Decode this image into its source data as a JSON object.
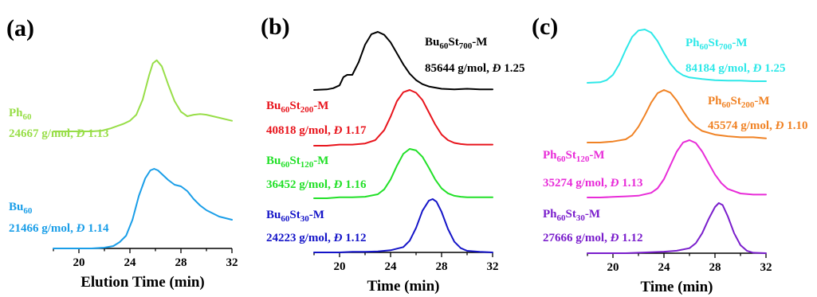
{
  "chart_data": [
    {
      "type": "line",
      "panel_label": "(a)",
      "xlabel": "Elution Time (min)",
      "ylabel": "",
      "xlim": [
        18,
        32
      ],
      "xticks": [
        20,
        24,
        28,
        32
      ],
      "grid": false,
      "series": [
        {
          "name": "Ph60",
          "name_base": "Ph",
          "name_sub": "60",
          "name_suffix": "",
          "info": "24667 g/mol, Đ 1.13",
          "color": "#98de48",
          "x": [
            18,
            19,
            20,
            21,
            21.8,
            22.5,
            23,
            23.5,
            24,
            24.5,
            25,
            25.5,
            25.8,
            26.1,
            26.5,
            27,
            27.5,
            28,
            28.5,
            29,
            29.5,
            30,
            31,
            32
          ],
          "y": [
            0.0,
            0.0,
            0.0,
            0.0,
            0.01,
            0.04,
            0.07,
            0.1,
            0.14,
            0.22,
            0.42,
            0.74,
            0.9,
            0.94,
            0.86,
            0.62,
            0.4,
            0.26,
            0.2,
            0.22,
            0.23,
            0.22,
            0.18,
            0.14
          ]
        },
        {
          "name": "Bu60",
          "name_base": "Bu",
          "name_sub": "60",
          "name_suffix": "",
          "info": "21466 g/mol, Đ 1.14",
          "color": "#1a9ee8",
          "x": [
            18,
            19,
            20,
            21,
            22,
            22.7,
            23.2,
            23.7,
            24.2,
            24.7,
            25.2,
            25.6,
            25.9,
            26.2,
            26.6,
            27,
            27.5,
            28,
            28.5,
            29,
            29.5,
            30,
            31,
            32
          ],
          "y": [
            0.0,
            0.0,
            0.0,
            0.0,
            0.01,
            0.03,
            0.08,
            0.16,
            0.36,
            0.66,
            0.88,
            0.98,
            1.0,
            0.98,
            0.92,
            0.86,
            0.8,
            0.78,
            0.72,
            0.62,
            0.54,
            0.48,
            0.4,
            0.36
          ]
        }
      ]
    },
    {
      "type": "line",
      "panel_label": "(b)",
      "xlabel": "Time (min)",
      "ylabel": "",
      "xlim": [
        18,
        32
      ],
      "xticks": [
        20,
        24,
        28,
        32
      ],
      "grid": false,
      "series": [
        {
          "name": "Bu60St700-M",
          "name_base": "Bu",
          "name_sub": "60",
          "name_suffix": "St700-M",
          "info": "85644 g/mol, Đ 1.25",
          "color": "#000000",
          "x": [
            18,
            19,
            19.5,
            20,
            20.3,
            20.6,
            21,
            21.5,
            22,
            22.5,
            23,
            23.5,
            24,
            24.5,
            25,
            25.5,
            26,
            26.5,
            27,
            28,
            29,
            30,
            31,
            32
          ],
          "y": [
            0.0,
            0.01,
            0.03,
            0.08,
            0.22,
            0.26,
            0.26,
            0.48,
            0.78,
            0.96,
            1.0,
            0.95,
            0.82,
            0.63,
            0.44,
            0.28,
            0.17,
            0.1,
            0.06,
            0.02,
            0.01,
            0.02,
            0.01,
            0.01
          ]
        },
        {
          "name": "Bu60St200-M",
          "name_base": "Bu",
          "name_sub": "60",
          "name_suffix": "St200-M",
          "info": "40818 g/mol, Đ 1.17",
          "color": "#e8141c",
          "x": [
            18,
            19,
            20,
            21,
            22,
            22.8,
            23.5,
            24,
            24.5,
            25,
            25.5,
            26,
            26.5,
            27,
            27.5,
            28,
            28.5,
            29,
            29.5,
            30,
            31,
            32
          ],
          "y": [
            0.0,
            0.0,
            0.02,
            0.02,
            0.04,
            0.1,
            0.28,
            0.52,
            0.8,
            0.96,
            1.0,
            0.95,
            0.82,
            0.6,
            0.38,
            0.2,
            0.1,
            0.05,
            0.03,
            0.02,
            0.02,
            0.02
          ]
        },
        {
          "name": "Bu60St120-M",
          "name_base": "Bu",
          "name_sub": "60",
          "name_suffix": "St120-M",
          "info": "36452 g/mol, Đ 1.16",
          "color": "#22e028",
          "x": [
            18,
            19,
            20,
            21,
            22,
            23,
            23.5,
            24,
            24.5,
            25,
            25.5,
            26,
            26.5,
            27,
            27.5,
            28,
            28.5,
            29,
            29.5,
            30,
            31,
            32
          ],
          "y": [
            0.0,
            0.0,
            0.02,
            0.02,
            0.03,
            0.08,
            0.18,
            0.38,
            0.66,
            0.9,
            1.0,
            0.97,
            0.84,
            0.62,
            0.38,
            0.2,
            0.1,
            0.05,
            0.03,
            0.02,
            0.02,
            0.02
          ]
        },
        {
          "name": "Bu60St30-M",
          "name_base": "Bu",
          "name_sub": "60",
          "name_suffix": "St30-M",
          "info": "24223 g/mol, Đ 1.12",
          "color": "#1414c8",
          "x": [
            18,
            19,
            20,
            21,
            22,
            23,
            24,
            25,
            25.5,
            26,
            26.5,
            27,
            27.3,
            27.6,
            28,
            28.5,
            29,
            29.5,
            30,
            31,
            32
          ],
          "y": [
            0.0,
            0.0,
            0.0,
            0.01,
            0.01,
            0.02,
            0.04,
            0.1,
            0.22,
            0.46,
            0.78,
            0.97,
            1.0,
            0.95,
            0.76,
            0.44,
            0.2,
            0.08,
            0.03,
            0.01,
            0.0
          ]
        }
      ]
    },
    {
      "type": "line",
      "panel_label": "(c)",
      "xlabel": "Time (min)",
      "ylabel": "",
      "xlim": [
        18,
        32
      ],
      "xticks": [
        20,
        24,
        28,
        32
      ],
      "grid": false,
      "series": [
        {
          "name": "Ph60St700-M",
          "name_base": "Ph",
          "name_sub": "60",
          "name_suffix": "St700-M",
          "info": "84184 g/mol, Đ 1.25",
          "color": "#2ee8e8",
          "x": [
            18,
            19,
            19.5,
            20,
            20.5,
            21,
            21.5,
            22,
            22.5,
            23,
            23.5,
            24,
            24.5,
            25,
            25.5,
            26,
            27,
            28,
            29,
            30,
            31,
            32
          ],
          "y": [
            0.0,
            0.01,
            0.05,
            0.15,
            0.35,
            0.62,
            0.86,
            0.98,
            1.0,
            0.94,
            0.78,
            0.56,
            0.36,
            0.22,
            0.14,
            0.1,
            0.07,
            0.05,
            0.04,
            0.04,
            0.03,
            0.03
          ]
        },
        {
          "name": "Ph60St200-M",
          "name_base": "Ph",
          "name_sub": "60",
          "name_suffix": "St200-M",
          "info": "45574 g/mol, Đ 1.10",
          "color": "#f08224",
          "x": [
            18,
            19,
            20,
            21,
            21.5,
            22,
            22.5,
            23,
            23.5,
            24,
            24.5,
            25,
            25.5,
            26,
            26.5,
            27,
            28,
            29,
            30,
            31,
            32
          ],
          "y": [
            0.0,
            0.0,
            0.02,
            0.06,
            0.14,
            0.3,
            0.52,
            0.76,
            0.94,
            1.0,
            0.95,
            0.8,
            0.6,
            0.42,
            0.3,
            0.22,
            0.15,
            0.12,
            0.1,
            0.1,
            0.08
          ]
        },
        {
          "name": "Ph60St120-M",
          "name_base": "Ph",
          "name_sub": "60",
          "name_suffix": "St120-M",
          "info": "35274 g/mol, Đ 1.13",
          "color": "#e82cd8",
          "x": [
            18,
            19,
            20,
            21,
            22,
            23,
            23.5,
            24,
            24.5,
            25,
            25.5,
            26,
            26.5,
            27,
            27.5,
            28,
            28.5,
            29,
            30,
            31,
            32
          ],
          "y": [
            0.0,
            0.0,
            0.01,
            0.02,
            0.03,
            0.08,
            0.16,
            0.32,
            0.56,
            0.8,
            0.96,
            1.0,
            0.95,
            0.8,
            0.6,
            0.4,
            0.25,
            0.15,
            0.07,
            0.05,
            0.05
          ]
        },
        {
          "name": "Ph60St30-M",
          "name_base": "Ph",
          "name_sub": "60",
          "name_suffix": "St30-M",
          "info": "27666 g/mol, Đ 1.12",
          "color": "#7a1ecc",
          "x": [
            18,
            19,
            20,
            21,
            22,
            23,
            24,
            25,
            26,
            26.5,
            27,
            27.5,
            28,
            28.3,
            28.6,
            29,
            29.5,
            30,
            30.5,
            31,
            32
          ],
          "y": [
            0.0,
            0.0,
            0.0,
            0.0,
            0.01,
            0.02,
            0.03,
            0.05,
            0.1,
            0.2,
            0.4,
            0.68,
            0.92,
            1.0,
            0.96,
            0.74,
            0.4,
            0.16,
            0.05,
            0.01,
            0.0
          ]
        }
      ]
    }
  ]
}
